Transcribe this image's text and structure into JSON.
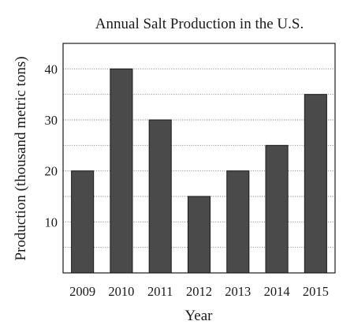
{
  "chart_data": {
    "type": "bar",
    "title": "Annual Salt Production in the U.S.",
    "xlabel": "Year",
    "ylabel": "Production (thousand metric tons)",
    "categories": [
      "2009",
      "2010",
      "2011",
      "2012",
      "2013",
      "2014",
      "2015"
    ],
    "values": [
      20,
      40,
      30,
      15,
      20,
      25,
      35
    ],
    "ylim": [
      0,
      45
    ],
    "yticks": [
      10,
      20,
      30,
      40
    ],
    "grid": true,
    "legend": false,
    "colors": {
      "bar": "#4a4a4a",
      "grid": "#888888",
      "text": "#1a1a1a"
    }
  }
}
